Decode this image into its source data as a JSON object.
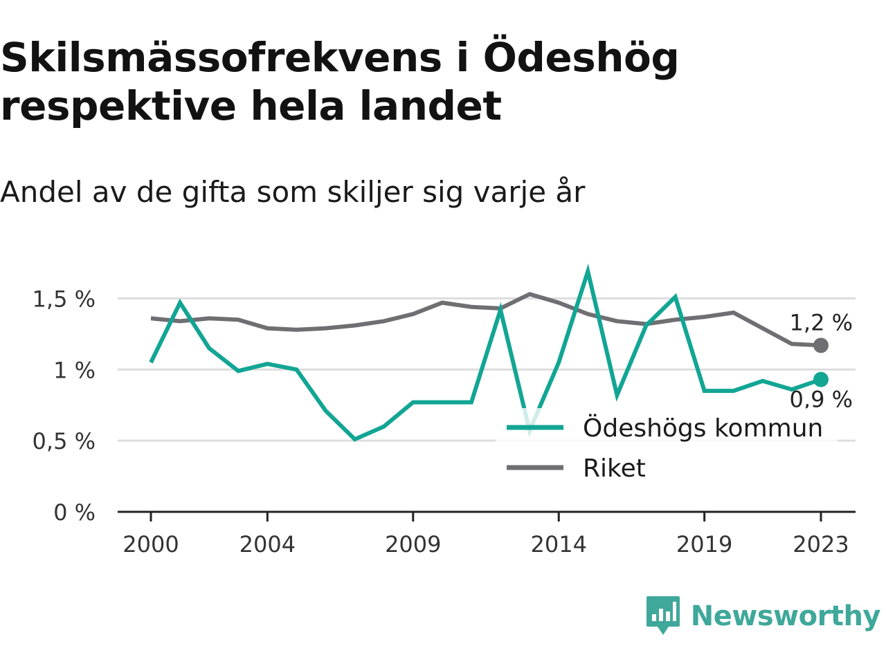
{
  "title": "Skilsmässofrekvens i Ödeshög respektive hela landet",
  "subtitle": "Andel av de gifta som skiljer sig varje år",
  "brand": "Newsworthy",
  "colors": {
    "odeshog": "#12a594",
    "riket": "#6e6e73",
    "grid": "#dddddd",
    "axis": "#222222",
    "brand": "#3fa89a"
  },
  "chart_data": {
    "type": "line",
    "x": [
      2000,
      2001,
      2002,
      2003,
      2004,
      2005,
      2006,
      2007,
      2008,
      2009,
      2010,
      2011,
      2012,
      2013,
      2014,
      2015,
      2016,
      2017,
      2018,
      2019,
      2020,
      2021,
      2022,
      2023
    ],
    "series": [
      {
        "name": "Ödeshögs kommun",
        "values": [
          1.05,
          1.47,
          1.15,
          0.99,
          1.04,
          1.0,
          0.71,
          0.51,
          0.6,
          0.77,
          0.77,
          0.77,
          1.42,
          0.57,
          1.05,
          1.69,
          0.82,
          1.31,
          1.51,
          0.85,
          0.85,
          0.92,
          0.86,
          0.93
        ]
      },
      {
        "name": "Riket",
        "values": [
          1.36,
          1.34,
          1.36,
          1.35,
          1.29,
          1.28,
          1.29,
          1.31,
          1.34,
          1.39,
          1.47,
          1.44,
          1.43,
          1.53,
          1.47,
          1.39,
          1.34,
          1.32,
          1.35,
          1.37,
          1.4,
          1.29,
          1.18,
          1.17
        ]
      }
    ],
    "end_labels": [
      "0,9 %",
      "1,2 %"
    ],
    "x_ticks": [
      2000,
      2004,
      2009,
      2014,
      2019,
      2023
    ],
    "x_tick_labels": [
      "2000",
      "2004",
      "2009",
      "2014",
      "2019",
      "2023"
    ],
    "y_ticks": [
      0,
      0.5,
      1,
      1.5
    ],
    "y_tick_labels": [
      "0 %",
      "0,5 %",
      "1 %",
      "1,5 %"
    ],
    "ylim": [
      0,
      1.75
    ],
    "xlim": [
      2000,
      2023
    ],
    "grid": true,
    "legend": {
      "placement": "bottom-right",
      "items": [
        "Ödeshögs kommun",
        "Riket"
      ]
    }
  }
}
